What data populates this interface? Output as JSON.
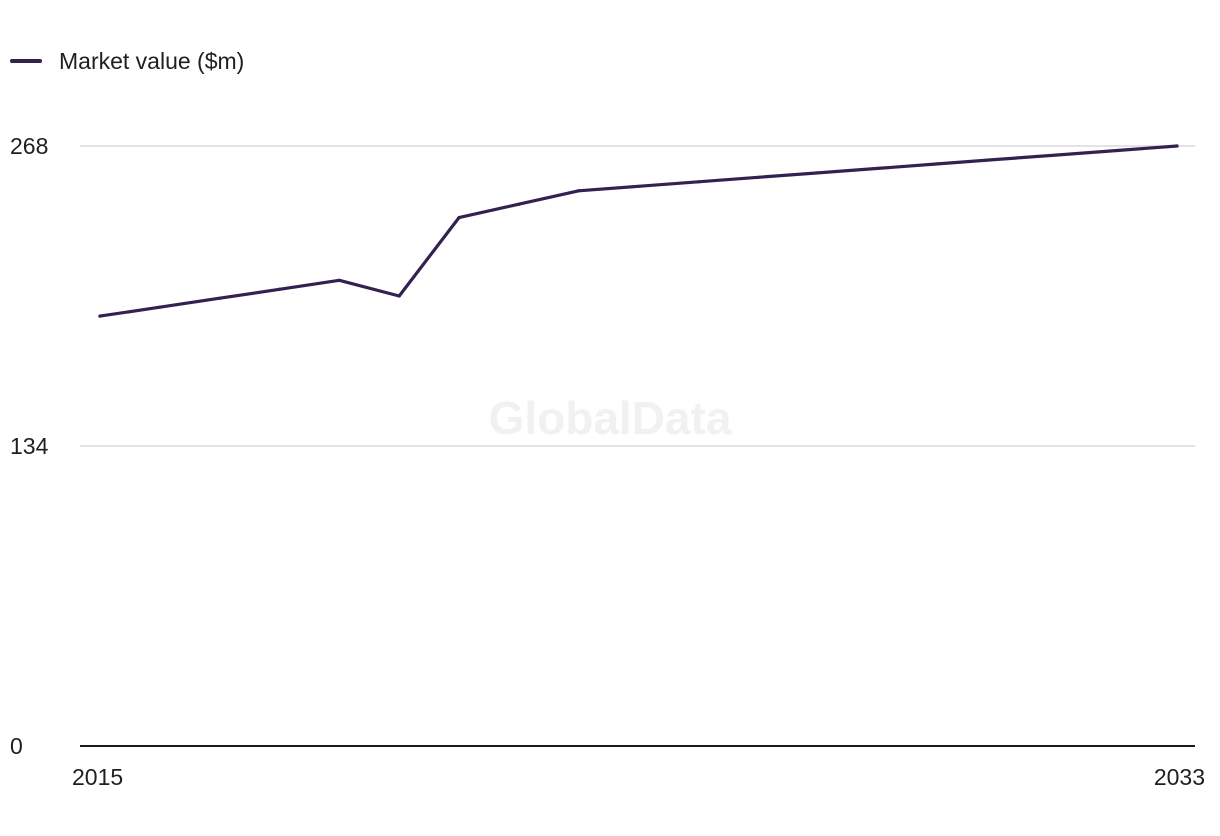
{
  "legend": {
    "label": "Market value ($m)"
  },
  "watermark": "GlobalData",
  "colors": {
    "series": "#33214f",
    "grid": "#d9d9df",
    "axis": "#1a1a1a"
  },
  "chart_data": {
    "type": "line",
    "title": "",
    "xlabel": "",
    "ylabel": "",
    "x": [
      2015,
      2016,
      2017,
      2018,
      2019,
      2020,
      2021,
      2022,
      2023,
      2024,
      2025,
      2026,
      2027,
      2028,
      2029,
      2030,
      2031,
      2032,
      2033
    ],
    "series": [
      {
        "name": "Market value ($m)",
        "values": [
          192,
          196,
          200,
          204,
          208,
          201,
          236,
          242,
          248,
          250,
          252,
          254,
          256,
          258,
          260,
          262,
          264,
          266,
          268
        ]
      }
    ],
    "xlim": [
      2015,
      2033
    ],
    "ylim": [
      0,
      268
    ],
    "y_ticks": [
      0,
      134,
      268
    ],
    "x_tick_labels": [
      "2015",
      "2033"
    ],
    "grid": true,
    "legend_position": "top-left"
  }
}
